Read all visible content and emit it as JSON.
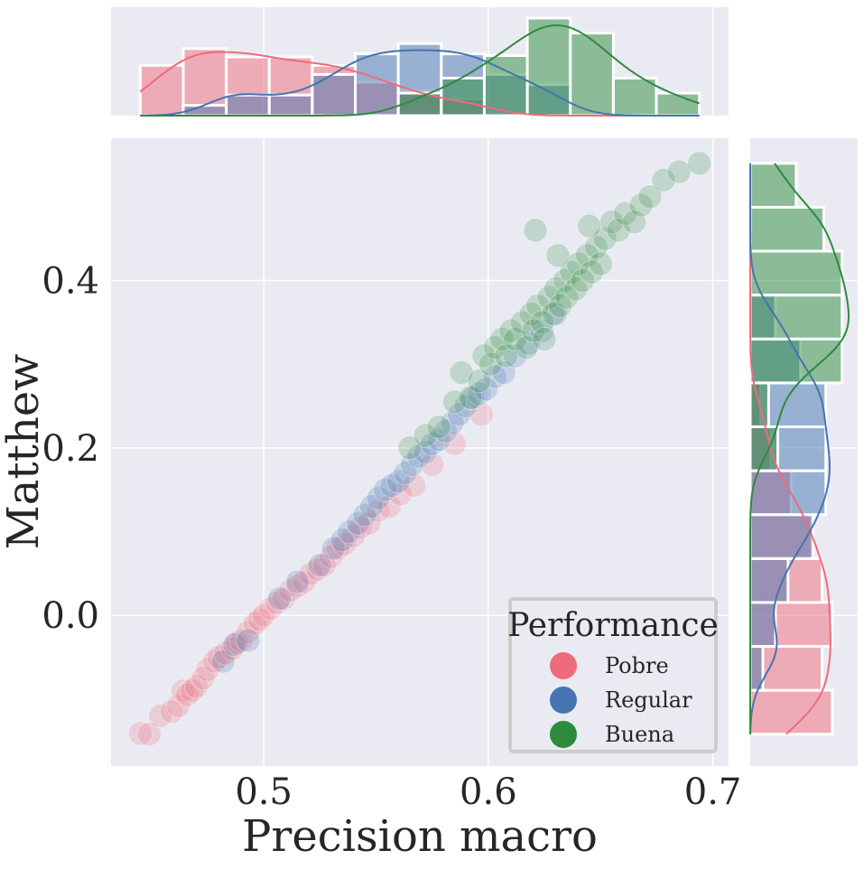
{
  "chart_data": {
    "type": "scatter",
    "title": "",
    "xlabel": "Precision macro",
    "ylabel": "Matthew",
    "xlim": [
      0.432,
      0.707
    ],
    "ylim": [
      -0.18,
      0.57
    ],
    "xticks": [
      {
        "value": 0.5,
        "label": "0.5"
      },
      {
        "value": 0.6,
        "label": "0.6"
      },
      {
        "value": 0.7,
        "label": "0.7"
      }
    ],
    "yticks": [
      {
        "value": 0.0,
        "label": "0.0"
      },
      {
        "value": 0.2,
        "label": "0.2"
      },
      {
        "value": 0.4,
        "label": "0.4"
      }
    ],
    "grid": true,
    "background": "#eaeaf2",
    "legend": {
      "title": "Performance",
      "placement": "bottom-right"
    },
    "marginal_histograms": {
      "top": "Precision macro",
      "right": "Matthew",
      "kde": true
    },
    "series": [
      {
        "name": "Pobre",
        "color": "#ef6b7b",
        "points": [
          [
            0.445,
            -0.141
          ],
          [
            0.449,
            -0.142
          ],
          [
            0.454,
            -0.12
          ],
          [
            0.459,
            -0.115
          ],
          [
            0.462,
            -0.108
          ],
          [
            0.464,
            -0.09
          ],
          [
            0.466,
            -0.095
          ],
          [
            0.468,
            -0.09
          ],
          [
            0.47,
            -0.085
          ],
          [
            0.473,
            -0.075
          ],
          [
            0.475,
            -0.065
          ],
          [
            0.478,
            -0.055
          ],
          [
            0.48,
            -0.05
          ],
          [
            0.483,
            -0.045
          ],
          [
            0.486,
            -0.04
          ],
          [
            0.488,
            -0.033
          ],
          [
            0.49,
            -0.03
          ],
          [
            0.493,
            -0.02
          ],
          [
            0.496,
            -0.01
          ],
          [
            0.498,
            -0.005
          ],
          [
            0.5,
            0.0
          ],
          [
            0.503,
            0.008
          ],
          [
            0.506,
            0.015
          ],
          [
            0.509,
            0.02
          ],
          [
            0.512,
            0.03
          ],
          [
            0.515,
            0.035
          ],
          [
            0.518,
            0.04
          ],
          [
            0.521,
            0.05
          ],
          [
            0.524,
            0.055
          ],
          [
            0.527,
            0.06
          ],
          [
            0.53,
            0.07
          ],
          [
            0.533,
            0.08
          ],
          [
            0.536,
            0.085
          ],
          [
            0.54,
            0.095
          ],
          [
            0.543,
            0.105
          ],
          [
            0.547,
            0.11
          ],
          [
            0.551,
            0.125
          ],
          [
            0.556,
            0.13
          ],
          [
            0.561,
            0.145
          ],
          [
            0.567,
            0.155
          ],
          [
            0.575,
            0.18
          ],
          [
            0.585,
            0.205
          ],
          [
            0.597,
            0.24
          ]
        ]
      },
      {
        "name": "Regular",
        "color": "#4575b0",
        "points": [
          [
            0.482,
            -0.055
          ],
          [
            0.487,
            -0.035
          ],
          [
            0.493,
            -0.03
          ],
          [
            0.507,
            0.02
          ],
          [
            0.515,
            0.04
          ],
          [
            0.525,
            0.06
          ],
          [
            0.531,
            0.08
          ],
          [
            0.535,
            0.09
          ],
          [
            0.538,
            0.1
          ],
          [
            0.542,
            0.11
          ],
          [
            0.545,
            0.12
          ],
          [
            0.548,
            0.13
          ],
          [
            0.551,
            0.14
          ],
          [
            0.554,
            0.15
          ],
          [
            0.557,
            0.155
          ],
          [
            0.56,
            0.16
          ],
          [
            0.563,
            0.17
          ],
          [
            0.566,
            0.18
          ],
          [
            0.569,
            0.19
          ],
          [
            0.572,
            0.195
          ],
          [
            0.575,
            0.205
          ],
          [
            0.578,
            0.21
          ],
          [
            0.581,
            0.22
          ],
          [
            0.584,
            0.23
          ],
          [
            0.587,
            0.24
          ],
          [
            0.59,
            0.25
          ],
          [
            0.593,
            0.26
          ],
          [
            0.596,
            0.265
          ],
          [
            0.599,
            0.27
          ],
          [
            0.603,
            0.285
          ],
          [
            0.607,
            0.29
          ],
          [
            0.612,
            0.31
          ],
          [
            0.618,
            0.325
          ],
          [
            0.624,
            0.34
          ],
          [
            0.63,
            0.36
          ]
        ]
      },
      {
        "name": "Buena",
        "color": "#2e8b3e",
        "points": [
          [
            0.565,
            0.2
          ],
          [
            0.572,
            0.215
          ],
          [
            0.578,
            0.225
          ],
          [
            0.585,
            0.255
          ],
          [
            0.588,
            0.29
          ],
          [
            0.592,
            0.26
          ],
          [
            0.596,
            0.28
          ],
          [
            0.598,
            0.31
          ],
          [
            0.601,
            0.3
          ],
          [
            0.603,
            0.32
          ],
          [
            0.606,
            0.33
          ],
          [
            0.608,
            0.31
          ],
          [
            0.61,
            0.34
          ],
          [
            0.612,
            0.33
          ],
          [
            0.615,
            0.35
          ],
          [
            0.617,
            0.32
          ],
          [
            0.619,
            0.36
          ],
          [
            0.62,
            0.34
          ],
          [
            0.622,
            0.37
          ],
          [
            0.624,
            0.35
          ],
          [
            0.625,
            0.33
          ],
          [
            0.627,
            0.38
          ],
          [
            0.629,
            0.36
          ],
          [
            0.63,
            0.39
          ],
          [
            0.632,
            0.37
          ],
          [
            0.634,
            0.4
          ],
          [
            0.635,
            0.38
          ],
          [
            0.637,
            0.41
          ],
          [
            0.639,
            0.39
          ],
          [
            0.64,
            0.42
          ],
          [
            0.642,
            0.4
          ],
          [
            0.644,
            0.43
          ],
          [
            0.646,
            0.41
          ],
          [
            0.648,
            0.44
          ],
          [
            0.65,
            0.42
          ],
          [
            0.652,
            0.45
          ],
          [
            0.655,
            0.47
          ],
          [
            0.658,
            0.46
          ],
          [
            0.661,
            0.48
          ],
          [
            0.665,
            0.47
          ],
          [
            0.668,
            0.49
          ],
          [
            0.672,
            0.5
          ],
          [
            0.678,
            0.52
          ],
          [
            0.685,
            0.53
          ],
          [
            0.694,
            0.54
          ],
          [
            0.621,
            0.46
          ],
          [
            0.631,
            0.43
          ],
          [
            0.645,
            0.465
          ]
        ]
      }
    ]
  }
}
